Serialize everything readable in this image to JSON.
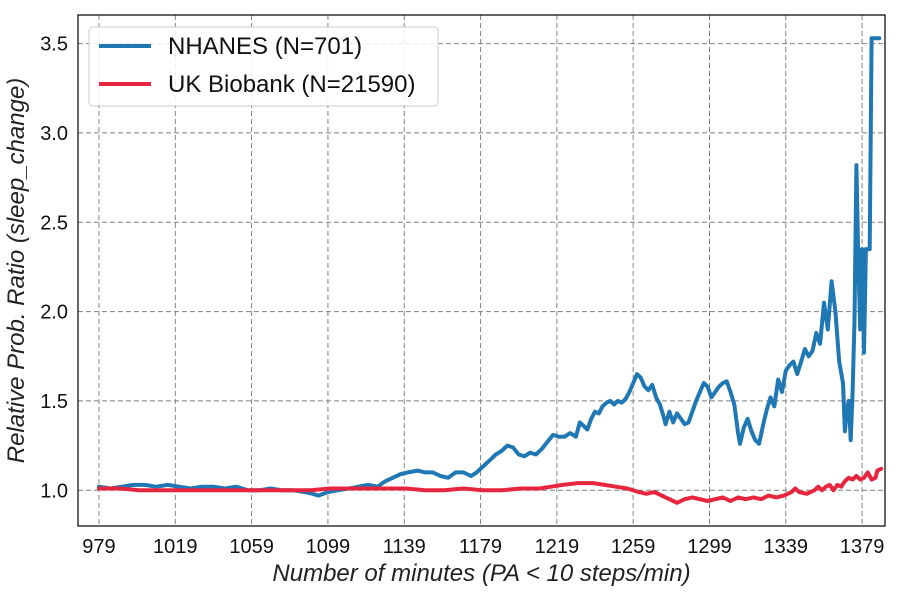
{
  "chart_data": {
    "type": "line",
    "xlabel": "Number of minutes (PA < 10 steps/min)",
    "ylabel": "Relative Prob. Ratio (sleep_change)",
    "xlim": [
      968,
      1391
    ],
    "ylim": [
      0.8,
      3.66
    ],
    "x_ticks": [
      979,
      1019,
      1059,
      1099,
      1139,
      1179,
      1219,
      1259,
      1299,
      1339,
      1379
    ],
    "y_ticks": [
      "1.0",
      "1.5",
      "2.0",
      "2.5",
      "3.0",
      "3.5"
    ],
    "grid": true,
    "legend_position": "upper-left",
    "series": [
      {
        "name": "NHANES (N=701)",
        "color": "#1f77b4",
        "points": [
          [
            979,
            1.02
          ],
          [
            985,
            1.01
          ],
          [
            991,
            1.02
          ],
          [
            997,
            1.03
          ],
          [
            1003,
            1.03
          ],
          [
            1009,
            1.02
          ],
          [
            1015,
            1.03
          ],
          [
            1021,
            1.02
          ],
          [
            1027,
            1.01
          ],
          [
            1033,
            1.02
          ],
          [
            1039,
            1.02
          ],
          [
            1045,
            1.01
          ],
          [
            1051,
            1.02
          ],
          [
            1057,
            1.0
          ],
          [
            1063,
            1.0
          ],
          [
            1069,
            1.01
          ],
          [
            1075,
            1.0
          ],
          [
            1081,
            1.0
          ],
          [
            1087,
            0.99
          ],
          [
            1091,
            0.98
          ],
          [
            1094,
            0.97
          ],
          [
            1099,
            0.99
          ],
          [
            1104,
            1.0
          ],
          [
            1110,
            1.01
          ],
          [
            1115,
            1.02
          ],
          [
            1120,
            1.03
          ],
          [
            1125,
            1.02
          ],
          [
            1129,
            1.05
          ],
          [
            1133,
            1.07
          ],
          [
            1137,
            1.09
          ],
          [
            1141,
            1.1
          ],
          [
            1146,
            1.11
          ],
          [
            1150,
            1.1
          ],
          [
            1154,
            1.1
          ],
          [
            1158,
            1.08
          ],
          [
            1162,
            1.07
          ],
          [
            1166,
            1.1
          ],
          [
            1170,
            1.1
          ],
          [
            1174,
            1.08
          ],
          [
            1177,
            1.1
          ],
          [
            1180,
            1.13
          ],
          [
            1184,
            1.17
          ],
          [
            1187,
            1.2
          ],
          [
            1190,
            1.22
          ],
          [
            1193,
            1.25
          ],
          [
            1196,
            1.24
          ],
          [
            1199,
            1.2
          ],
          [
            1202,
            1.19
          ],
          [
            1205,
            1.21
          ],
          [
            1208,
            1.2
          ],
          [
            1211,
            1.23
          ],
          [
            1214,
            1.27
          ],
          [
            1217,
            1.31
          ],
          [
            1220,
            1.3
          ],
          [
            1223,
            1.3
          ],
          [
            1226,
            1.32
          ],
          [
            1229,
            1.3
          ],
          [
            1231,
            1.38
          ],
          [
            1233,
            1.36
          ],
          [
            1235,
            1.34
          ],
          [
            1237,
            1.4
          ],
          [
            1239,
            1.44
          ],
          [
            1241,
            1.43
          ],
          [
            1243,
            1.47
          ],
          [
            1245,
            1.49
          ],
          [
            1247,
            1.5
          ],
          [
            1249,
            1.48
          ],
          [
            1251,
            1.5
          ],
          [
            1253,
            1.49
          ],
          [
            1255,
            1.51
          ],
          [
            1257,
            1.55
          ],
          [
            1259,
            1.6
          ],
          [
            1261,
            1.65
          ],
          [
            1263,
            1.63
          ],
          [
            1265,
            1.58
          ],
          [
            1267,
            1.56
          ],
          [
            1269,
            1.59
          ],
          [
            1271,
            1.52
          ],
          [
            1273,
            1.48
          ],
          [
            1275,
            1.41
          ],
          [
            1276,
            1.37
          ],
          [
            1278,
            1.44
          ],
          [
            1280,
            1.38
          ],
          [
            1282,
            1.43
          ],
          [
            1284,
            1.4
          ],
          [
            1286,
            1.37
          ],
          [
            1288,
            1.38
          ],
          [
            1290,
            1.44
          ],
          [
            1292,
            1.5
          ],
          [
            1294,
            1.55
          ],
          [
            1296,
            1.6
          ],
          [
            1298,
            1.58
          ],
          [
            1300,
            1.52
          ],
          [
            1302,
            1.55
          ],
          [
            1304,
            1.58
          ],
          [
            1306,
            1.6
          ],
          [
            1308,
            1.61
          ],
          [
            1310,
            1.55
          ],
          [
            1312,
            1.48
          ],
          [
            1314,
            1.32
          ],
          [
            1315,
            1.26
          ],
          [
            1317,
            1.35
          ],
          [
            1319,
            1.4
          ],
          [
            1321,
            1.33
          ],
          [
            1323,
            1.28
          ],
          [
            1325,
            1.26
          ],
          [
            1327,
            1.36
          ],
          [
            1329,
            1.45
          ],
          [
            1331,
            1.52
          ],
          [
            1333,
            1.47
          ],
          [
            1335,
            1.62
          ],
          [
            1337,
            1.55
          ],
          [
            1339,
            1.67
          ],
          [
            1341,
            1.7
          ],
          [
            1343,
            1.72
          ],
          [
            1345,
            1.65
          ],
          [
            1347,
            1.72
          ],
          [
            1349,
            1.79
          ],
          [
            1351,
            1.75
          ],
          [
            1353,
            1.78
          ],
          [
            1355,
            1.88
          ],
          [
            1357,
            1.82
          ],
          [
            1359,
            2.05
          ],
          [
            1361,
            1.9
          ],
          [
            1363,
            2.17
          ],
          [
            1365,
            2.0
          ],
          [
            1367,
            1.72
          ],
          [
            1369,
            1.6
          ],
          [
            1370,
            1.33
          ],
          [
            1371,
            1.45
          ],
          [
            1372,
            1.5
          ],
          [
            1373,
            1.28
          ],
          [
            1374,
            1.55
          ],
          [
            1375,
            1.95
          ],
          [
            1376,
            2.82
          ],
          [
            1377,
            2.3
          ],
          [
            1378,
            1.9
          ],
          [
            1379,
            2.35
          ],
          [
            1380,
            1.77
          ],
          [
            1381,
            2.35
          ],
          [
            1383,
            2.35
          ],
          [
            1384,
            3.53
          ],
          [
            1386,
            3.53
          ],
          [
            1388,
            3.53
          ]
        ]
      },
      {
        "name": "UK Biobank (N=21590)",
        "color": "#e8253f",
        "points": [
          [
            979,
            1.01
          ],
          [
            990,
            1.01
          ],
          [
            1000,
            1.0
          ],
          [
            1010,
            1.0
          ],
          [
            1020,
            1.0
          ],
          [
            1030,
            1.0
          ],
          [
            1040,
            1.0
          ],
          [
            1050,
            1.0
          ],
          [
            1060,
            1.0
          ],
          [
            1070,
            1.0
          ],
          [
            1080,
            1.0
          ],
          [
            1090,
            1.0
          ],
          [
            1100,
            1.01
          ],
          [
            1110,
            1.01
          ],
          [
            1120,
            1.01
          ],
          [
            1130,
            1.01
          ],
          [
            1140,
            1.01
          ],
          [
            1150,
            1.0
          ],
          [
            1160,
            1.0
          ],
          [
            1170,
            1.01
          ],
          [
            1180,
            1.0
          ],
          [
            1190,
            1.0
          ],
          [
            1200,
            1.01
          ],
          [
            1210,
            1.01
          ],
          [
            1216,
            1.02
          ],
          [
            1222,
            1.03
          ],
          [
            1230,
            1.04
          ],
          [
            1238,
            1.04
          ],
          [
            1244,
            1.03
          ],
          [
            1250,
            1.02
          ],
          [
            1256,
            1.01
          ],
          [
            1262,
            0.99
          ],
          [
            1266,
            0.98
          ],
          [
            1270,
            0.99
          ],
          [
            1274,
            0.97
          ],
          [
            1278,
            0.95
          ],
          [
            1282,
            0.93
          ],
          [
            1286,
            0.95
          ],
          [
            1290,
            0.96
          ],
          [
            1294,
            0.95
          ],
          [
            1298,
            0.94
          ],
          [
            1302,
            0.95
          ],
          [
            1306,
            0.96
          ],
          [
            1310,
            0.94
          ],
          [
            1314,
            0.96
          ],
          [
            1318,
            0.95
          ],
          [
            1322,
            0.96
          ],
          [
            1326,
            0.95
          ],
          [
            1330,
            0.97
          ],
          [
            1334,
            0.96
          ],
          [
            1338,
            0.97
          ],
          [
            1342,
            0.99
          ],
          [
            1344,
            1.01
          ],
          [
            1346,
            0.99
          ],
          [
            1350,
            0.98
          ],
          [
            1354,
            1.0
          ],
          [
            1356,
            1.02
          ],
          [
            1358,
            1.0
          ],
          [
            1360,
            1.02
          ],
          [
            1362,
            1.03
          ],
          [
            1364,
            1.0
          ],
          [
            1366,
            1.03
          ],
          [
            1368,
            1.02
          ],
          [
            1370,
            1.05
          ],
          [
            1372,
            1.07
          ],
          [
            1374,
            1.06
          ],
          [
            1376,
            1.08
          ],
          [
            1378,
            1.06
          ],
          [
            1380,
            1.07
          ],
          [
            1382,
            1.1
          ],
          [
            1384,
            1.06
          ],
          [
            1386,
            1.07
          ],
          [
            1387,
            1.11
          ],
          [
            1389,
            1.12
          ]
        ]
      }
    ]
  }
}
